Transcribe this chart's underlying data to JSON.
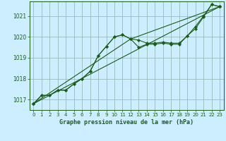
{
  "title": "Graphe pression niveau de la mer (hPa)",
  "background_color": "#cceeff",
  "grid_color": "#99bbbb",
  "line_color": "#1a5c1a",
  "xlim": [
    -0.5,
    23.5
  ],
  "ylim": [
    1016.5,
    1021.7
  ],
  "yticks": [
    1017,
    1018,
    1019,
    1020,
    1021
  ],
  "xticks": [
    0,
    1,
    2,
    3,
    4,
    5,
    6,
    7,
    8,
    9,
    10,
    11,
    12,
    13,
    14,
    15,
    16,
    17,
    18,
    19,
    20,
    21,
    22,
    23
  ],
  "series1_x": [
    0,
    1,
    2,
    3,
    4,
    5,
    6,
    7,
    8,
    9,
    10,
    11,
    12,
    13,
    14,
    15,
    16,
    17,
    18,
    19,
    20,
    21,
    22,
    23
  ],
  "series1_y": [
    1016.8,
    1017.2,
    1017.2,
    1017.45,
    1017.45,
    1017.75,
    1018.0,
    1018.35,
    1019.1,
    1019.55,
    1020.0,
    1020.1,
    1019.9,
    1019.85,
    1019.7,
    1019.7,
    1019.75,
    1019.7,
    1019.7,
    1020.05,
    1020.5,
    1021.0,
    1021.55,
    1021.45
  ],
  "series2_x": [
    0,
    1,
    2,
    3,
    4,
    5,
    6,
    7,
    8,
    9,
    10,
    11,
    12,
    13,
    14,
    15,
    16,
    17,
    18,
    19,
    20,
    21,
    22,
    23
  ],
  "series2_y": [
    1016.8,
    1017.2,
    1017.2,
    1017.45,
    1017.45,
    1017.75,
    1018.0,
    1018.35,
    1019.1,
    1019.55,
    1020.0,
    1020.1,
    1019.9,
    1019.5,
    1019.65,
    1019.65,
    1019.7,
    1019.65,
    1019.65,
    1020.05,
    1020.4,
    1020.95,
    1021.55,
    1021.45
  ],
  "series3_x": [
    0,
    23
  ],
  "series3_y": [
    1016.8,
    1021.45
  ],
  "series4_x": [
    0,
    12,
    23
  ],
  "series4_y": [
    1016.8,
    1019.9,
    1021.45
  ]
}
